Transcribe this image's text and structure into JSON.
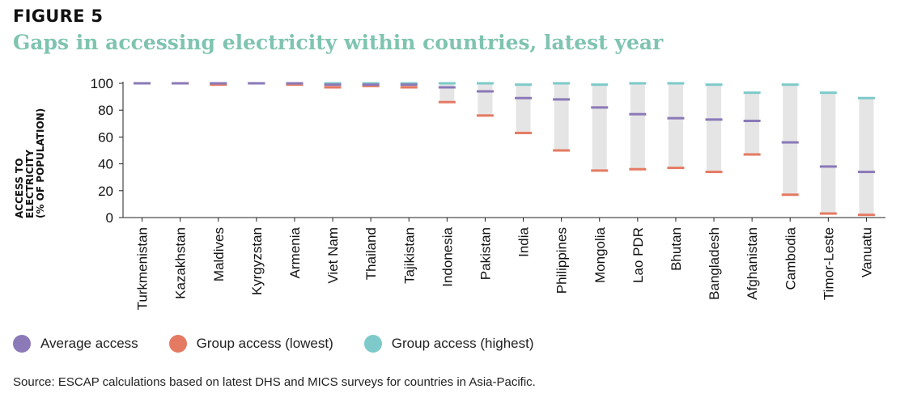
{
  "figure_label": "FIGURE 5",
  "title": "Gaps in accessing electricity within countries, latest year",
  "y_axis_label": [
    "ACCESS TO",
    "ELECTRICITY",
    "(% OF POPULATION)"
  ],
  "legend": [
    {
      "label": "Average access",
      "color": "#8b79b8"
    },
    {
      "label": "Group access (lowest)",
      "color": "#e57a62"
    },
    {
      "label": "Group access (highest)",
      "color": "#7ecaca"
    }
  ],
  "source": "Source: ESCAP calculations based on latest DHS and MICS surveys for countries in Asia-Pacific.",
  "chart_data": {
    "type": "range",
    "yticks": [
      0,
      20,
      40,
      60,
      80,
      100
    ],
    "ylim": [
      0,
      100
    ],
    "range_color": "#e5e5e5",
    "categories": [
      "Turkmenistan",
      "Kazakhstan",
      "Maldives",
      "Kyrgyzstan",
      "Armenia",
      "Viet Nam",
      "Thailand",
      "Tajikistan",
      "Indonesia",
      "Pakistan",
      "India",
      "Philippines",
      "Mongolia",
      "Lao PDR",
      "Bhutan",
      "Bangladesh",
      "Afghanistan",
      "Cambodia",
      "Timor-Leste",
      "Vanuatu"
    ],
    "series": [
      {
        "name": "Group access (highest)",
        "color": "#7ecaca",
        "values": [
          100,
          100,
          100,
          100,
          100,
          100,
          100,
          100,
          100,
          100,
          99,
          100,
          99,
          100,
          100,
          99,
          93,
          99,
          93,
          89
        ]
      },
      {
        "name": "Average access",
        "color": "#8b79b8",
        "values": [
          100,
          100,
          100,
          100,
          100,
          99,
          99,
          99,
          97,
          94,
          89,
          88,
          82,
          77,
          74,
          73,
          72,
          56,
          38,
          34
        ]
      },
      {
        "name": "Group access (lowest)",
        "color": "#e57a62",
        "values": [
          100,
          100,
          99,
          100,
          99,
          97,
          98,
          97,
          86,
          76,
          63,
          50,
          35,
          36,
          37,
          34,
          47,
          17,
          3,
          2
        ]
      }
    ]
  }
}
